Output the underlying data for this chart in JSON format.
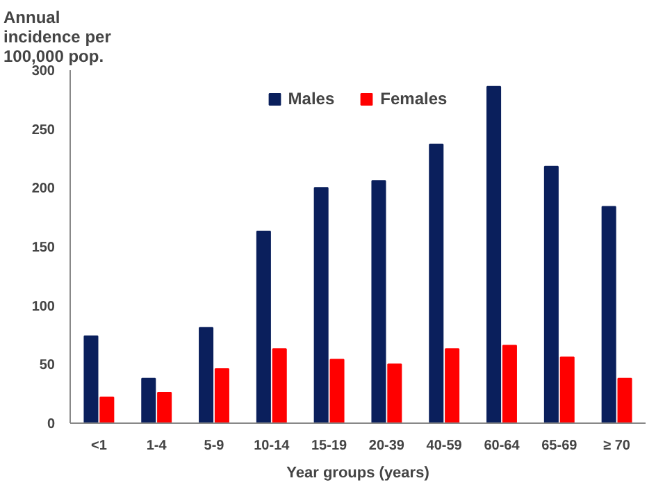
{
  "chart_data": {
    "type": "bar",
    "ylabel": "Annual\nincidence per\n100,000 pop.",
    "xlabel": "Year groups (years)",
    "categories": [
      "<1",
      "1-4",
      "5-9",
      "10-14",
      "15-19",
      "20-39",
      "40-59",
      "60-64",
      "65-69",
      "≥ 70"
    ],
    "series": [
      {
        "name": "Males",
        "color": "#0a1f5c",
        "values": [
          74,
          38,
          81,
          163,
          200,
          206,
          237,
          286,
          218,
          184
        ]
      },
      {
        "name": "Females",
        "color": "#ff0000",
        "values": [
          22,
          26,
          46,
          63,
          54,
          50,
          63,
          66,
          56,
          38
        ]
      }
    ],
    "ylim": [
      0,
      300
    ],
    "yticks": [
      0,
      50,
      100,
      150,
      200,
      250,
      300
    ],
    "grid": false,
    "legend": "top"
  }
}
